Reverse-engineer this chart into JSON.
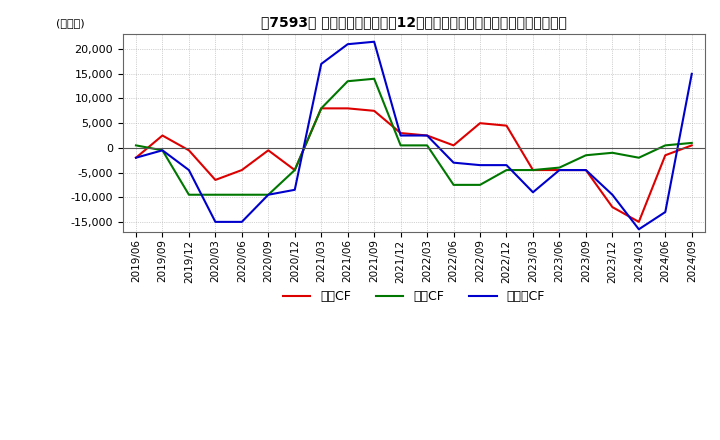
{
  "title": "［7593］ キャッシュフローの12か月移動合計の対前年同期増減額の推移",
  "ylabel": "(百万円)",
  "ylim": [
    -17000,
    23000
  ],
  "yticks": [
    -15000,
    -10000,
    -5000,
    0,
    5000,
    10000,
    15000,
    20000
  ],
  "legend_labels": [
    "営業CF",
    "投資CF",
    "フリーCF"
  ],
  "line_colors": [
    "#dd0000",
    "#007700",
    "#0000cc"
  ],
  "background_color": "#ffffff",
  "grid_color": "#aaaaaa",
  "dates": [
    "2019/06",
    "2019/09",
    "2019/12",
    "2020/03",
    "2020/06",
    "2020/09",
    "2020/12",
    "2021/03",
    "2021/06",
    "2021/09",
    "2021/12",
    "2022/03",
    "2022/06",
    "2022/09",
    "2022/12",
    "2023/03",
    "2023/06",
    "2023/09",
    "2023/12",
    "2024/03",
    "2024/06",
    "2024/09"
  ],
  "営業CF": [
    -2000,
    2500,
    -500,
    -6500,
    -4500,
    -500,
    -4500,
    8000,
    8000,
    7500,
    3000,
    2500,
    500,
    5000,
    4500,
    -4500,
    -4500,
    -4500,
    -12000,
    -15000,
    -1500,
    500
  ],
  "投資CF": [
    500,
    -500,
    -9500,
    -9500,
    -9500,
    -9500,
    -4500,
    8000,
    13500,
    14000,
    500,
    500,
    -7500,
    -7500,
    -4500,
    -4500,
    -4000,
    -1500,
    -1000,
    -2000,
    500,
    1000
  ],
  "フリーCF": [
    -2000,
    -500,
    -4500,
    -15000,
    -15000,
    -9500,
    -8500,
    17000,
    21000,
    21500,
    2500,
    2500,
    -3000,
    -3500,
    -3500,
    -9000,
    -4500,
    -4500,
    -9500,
    -16500,
    -13000,
    15000
  ]
}
